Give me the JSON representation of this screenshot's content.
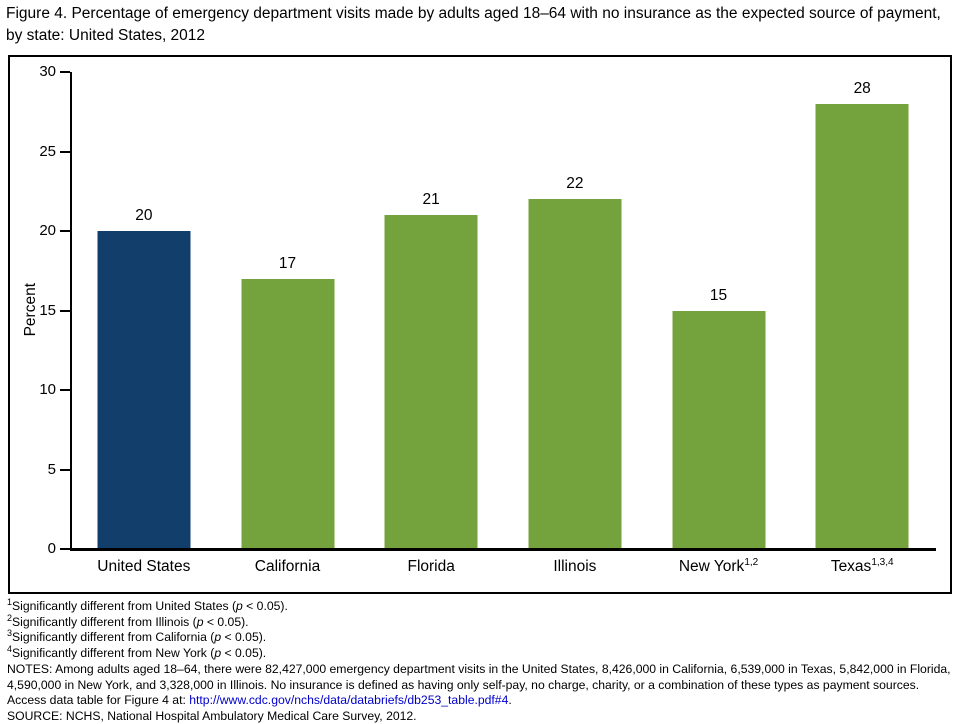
{
  "chart_data": {
    "type": "bar",
    "title": "Figure 4. Percentage of emergency department visits made by adults aged 18–64 with no insurance as the expected source of payment, by state: United States, 2012",
    "xlabel": "",
    "ylabel": "Percent",
    "ylim": [
      0,
      30
    ],
    "yticks": [
      0,
      5,
      10,
      15,
      20,
      25,
      30
    ],
    "grid": false,
    "legend": "none",
    "categories": [
      "United States",
      "California",
      "Florida",
      "Illinois",
      "New York",
      "Texas"
    ],
    "category_superscripts": [
      "",
      "",
      "",
      "",
      "1,2",
      "1,3,4"
    ],
    "values": [
      20,
      17,
      21,
      22,
      15,
      28
    ],
    "bar_colors": [
      "#123e6b",
      "#74a33d",
      "#74a33d",
      "#74a33d",
      "#74a33d",
      "#74a33d"
    ]
  },
  "footnotes": [
    {
      "marker": "1",
      "text": "Significantly different from United States (",
      "p": "p",
      "rest": " < 0.05)."
    },
    {
      "marker": "2",
      "text": "Significantly different from Illinois (",
      "p": "p",
      "rest": " < 0.05)."
    },
    {
      "marker": "3",
      "text": "Significantly different from California (",
      "p": "p",
      "rest": " < 0.05)."
    },
    {
      "marker": "4",
      "text": "Significantly different from New York (",
      "p": "p",
      "rest": " < 0.05)."
    }
  ],
  "notes": {
    "label": "NOTES:",
    "text_before_link": " Among adults aged 18–64, there were 82,427,000 emergency department visits in the United States, 8,426,000 in California, 6,539,000 in Texas, 5,842,000 in Florida, 4,590,000 in New York, and 3,328,000 in Illinois. No insurance is defined as having only self-pay, no charge, charity, or a combination of these types as payment sources. Access data table for Figure 4 at: ",
    "link": "http://www.cdc.gov/nchs/data/databriefs/db253_table.pdf#4",
    "text_after_link": "."
  },
  "source": "SOURCE: NCHS, National Hospital Ambulatory Medical Care Survey, 2012.",
  "colors": {
    "us_bar": "#123e6b",
    "state_bar": "#74a33d",
    "axis": "#000000",
    "link_text": "#0000cc"
  }
}
